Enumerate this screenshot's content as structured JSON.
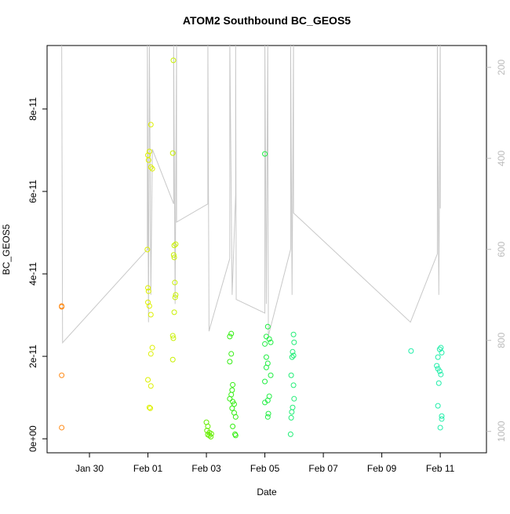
{
  "chart_data": {
    "type": "scatter",
    "title": "ATOM2 Southbound BC_GEOS5",
    "xlabel": "Date",
    "ylabel": "BC_GEOS5",
    "xlim": [
      28.55,
      43.58
    ],
    "xticks": [
      {
        "value": 30,
        "label": "Jan 30"
      },
      {
        "value": 32,
        "label": "Feb 01"
      },
      {
        "value": 34,
        "label": "Feb 03"
      },
      {
        "value": 36,
        "label": "Feb 05"
      },
      {
        "value": 38,
        "label": "Feb 07"
      },
      {
        "value": 40,
        "label": "Feb 09"
      },
      {
        "value": 42,
        "label": "Feb 11"
      }
    ],
    "ylim": [
      -3.4e-12,
      9.54e-11
    ],
    "yticks": [
      {
        "value": 0,
        "label": "0e+00"
      },
      {
        "value": 2e-11,
        "label": "2e-11"
      },
      {
        "value": 4e-11,
        "label": "4e-11"
      },
      {
        "value": 6e-11,
        "label": "6e-11"
      },
      {
        "value": 8e-11,
        "label": "8e-11"
      }
    ],
    "y2lim": [
      1047,
      152
    ],
    "y2ticks": [
      200,
      400,
      600,
      800,
      1000
    ],
    "series": [
      {
        "color": "#ff8c1a",
        "x": [
          29.05,
          29.05,
          29.05,
          29.05
        ],
        "values": [
          3.2e-11,
          3.22e-11,
          1.54e-11,
          2.7e-12
        ]
      },
      {
        "color": "#ddf000",
        "x": [
          32.1,
          32.05,
          32.0,
          32.02,
          32.1,
          32.15,
          31.98,
          32.0,
          32.02,
          32.0,
          32.05,
          32.1,
          32.15,
          32.1,
          32.0,
          32.1,
          32.05,
          32.08
        ],
        "values": [
          7.62e-11,
          6.97e-11,
          6.88e-11,
          6.76e-11,
          6.59e-11,
          6.55e-11,
          4.59e-11,
          3.66e-11,
          3.58e-11,
          3.31e-11,
          3.22e-11,
          3.01e-11,
          2.21e-11,
          2.06e-11,
          1.43e-11,
          1.28e-11,
          7.6e-12,
          7.4e-12
        ]
      },
      {
        "color": "#c8f000",
        "x": [
          32.87,
          32.85,
          32.95,
          32.9,
          32.88,
          32.9,
          32.92,
          32.95,
          32.93,
          32.9,
          32.85,
          32.87,
          32.85
        ],
        "values": [
          9.18e-11,
          6.93e-11,
          4.72e-11,
          4.69e-11,
          4.46e-11,
          4.4e-11,
          3.79e-11,
          3.49e-11,
          3.43e-11,
          3.07e-11,
          2.5e-11,
          2.44e-11,
          1.92e-11
        ]
      },
      {
        "color": "#66ee00",
        "x": [
          34.0,
          34.05,
          34.02,
          34.1,
          34.05,
          34.15,
          34.1,
          34.17
        ],
        "values": [
          4e-12,
          3e-12,
          2e-12,
          1.5e-12,
          1e-12,
          5e-13,
          8e-13,
          1.2e-12
        ]
      },
      {
        "color": "#33ee11",
        "x": [
          34.85,
          34.8,
          34.85,
          34.8,
          34.9,
          34.88,
          34.85,
          34.8,
          34.9,
          34.95,
          34.88,
          34.95,
          35.0,
          34.9,
          34.98,
          35.0
        ],
        "values": [
          2.55e-11,
          2.48e-11,
          2.06e-11,
          1.87e-11,
          1.31e-11,
          1.18e-11,
          1.07e-11,
          9.7e-12,
          9e-12,
          8.4e-12,
          7.4e-12,
          6.3e-12,
          5.3e-12,
          3e-12,
          1.1e-12,
          8e-13
        ]
      },
      {
        "color": "#22ee44",
        "x": [
          36.0,
          36.1,
          36.05,
          36.15,
          36.2,
          36.0,
          36.05,
          36.1,
          36.05,
          36.2,
          36.0,
          36.15,
          36.1,
          36.0,
          36.12,
          36.1
        ],
        "values": [
          6.91e-11,
          2.72e-11,
          2.48e-11,
          2.42e-11,
          2.34e-11,
          2.3e-11,
          1.98e-11,
          1.83e-11,
          1.73e-11,
          1.54e-11,
          1.39e-11,
          1.03e-11,
          9.3e-12,
          8.8e-12,
          6.1e-12,
          5.3e-12
        ]
      },
      {
        "color": "#22ee77",
        "x": [
          36.98,
          37.0,
          36.95,
          36.98,
          36.93,
          36.9,
          36.98,
          37.0,
          36.95,
          36.92,
          36.9,
          36.88
        ],
        "values": [
          2.53e-11,
          2.34e-11,
          2.11e-11,
          2.02e-11,
          1.98e-11,
          1.54e-11,
          1.3e-11,
          9.7e-12,
          7.6e-12,
          6.5e-12,
          5.1e-12,
          1.1e-12
        ]
      },
      {
        "color": "#22eeaa",
        "x": [
          41.0,
          42.02,
          41.98,
          42.05,
          41.92,
          41.88,
          41.92,
          41.98,
          42.02,
          41.95,
          41.92,
          42.05,
          42.05,
          42.0
        ],
        "values": [
          2.13e-11,
          2.21e-11,
          2.17e-11,
          2.09e-11,
          1.98e-11,
          1.77e-11,
          1.7e-11,
          1.64e-11,
          1.56e-11,
          1.35e-11,
          8e-12,
          4.8e-12,
          5.5e-12,
          2.7e-12
        ]
      },
      {
        "type": "line",
        "axis": "y2",
        "color": "#c8c8c8",
        "x": [
          29.05,
          29.08,
          31.98,
          31.98,
          32.02,
          32.05,
          32.1,
          32.15,
          32.88,
          32.88,
          32.93,
          32.98,
          32.98,
          34.05,
          34.05,
          34.09,
          34.13,
          34.8,
          34.8,
          34.88,
          35.0,
          35.0,
          35.02,
          36.0,
          36.0,
          36.05,
          36.1,
          36.12,
          36.88,
          36.88,
          36.93,
          36.98,
          36.98,
          40.98,
          41.9,
          41.9,
          41.95,
          42.0,
          42.0
        ],
        "values": [
          140,
          805,
          600,
          140,
          760,
          140,
          700,
          380,
          500,
          140,
          720,
          140,
          540,
          500,
          140,
          780,
          770,
          620,
          140,
          700,
          480,
          140,
          710,
          740,
          140,
          720,
          140,
          790,
          600,
          140,
          700,
          140,
          520,
          760,
          610,
          140,
          700,
          140,
          510
        ]
      }
    ]
  }
}
